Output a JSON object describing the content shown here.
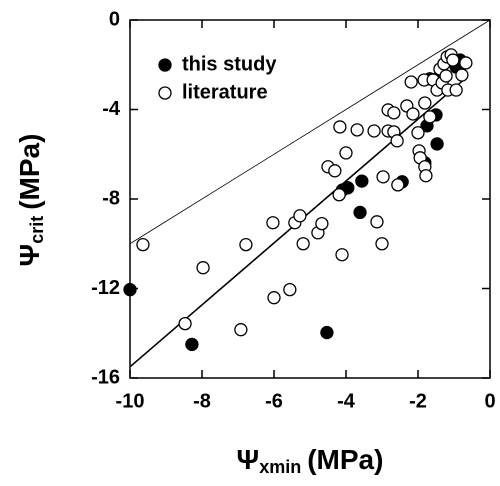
{
  "chart_data": {
    "type": "scatter",
    "x_label": {
      "symbol": "Ψ",
      "subscript": "xmin",
      "unit": "(MPa)"
    },
    "y_label": {
      "symbol": "Ψ",
      "subscript": "crit",
      "unit": "(MPa)"
    },
    "xlim": [
      -10,
      0
    ],
    "ylim": [
      -16,
      0
    ],
    "xticks": [
      -10,
      -8,
      -6,
      -4,
      -2,
      0
    ],
    "yticks": [
      -16,
      -12,
      -8,
      -4,
      0
    ],
    "legend_position": "upper left",
    "series": [
      {
        "name": "this study",
        "color": "#000000",
        "filled": true,
        "x": [
          -10,
          -8.28,
          -4.53,
          -4.1,
          -3.95,
          -3.56,
          -3.61,
          -2.44,
          -1.81,
          -1.75,
          -1.67,
          -1.5,
          -1.47,
          -1.67,
          -1.44,
          -0.97,
          -0.83,
          -0.94
        ],
        "values": [
          -12.05,
          -14.5,
          -13.97,
          -7.6,
          -7.5,
          -7.2,
          -8.6,
          -7.23,
          -6.38,
          -4.73,
          -2.63,
          -4.24,
          -5.54,
          -2.63,
          -2.59,
          -1.92,
          -1.79,
          -2.1
        ]
      },
      {
        "name": "literature",
        "color": "#000000",
        "filled": false,
        "x": [
          -9.64,
          -7.97,
          -6.78,
          -8.47,
          -6.92,
          -6.0,
          -5.56,
          -6.03,
          -5.42,
          -5.28,
          -5.19,
          -4.78,
          -4.67,
          -4.5,
          -4.31,
          -4.19,
          -4.11,
          -4.17,
          -4.0,
          -3.69,
          -3.22,
          -3.14,
          -3.0,
          -2.97,
          -2.83,
          -2.83,
          -2.67,
          -2.67,
          -2.58,
          -2.56,
          -2.31,
          -2.19,
          -2.14,
          -2.0,
          -1.97,
          -1.94,
          -1.81,
          -1.78,
          -1.83,
          -1.81,
          -1.67,
          -1.58,
          -1.47,
          -1.39,
          -1.33,
          -1.22,
          -1.17,
          -1.28,
          -1.19,
          -1.08,
          -1.03,
          -0.94,
          -0.78,
          -0.67
        ],
        "values": [
          -10.04,
          -11.07,
          -10.04,
          -13.57,
          -13.84,
          -12.41,
          -12.05,
          -9.06,
          -9.06,
          -8.75,
          -10.0,
          -9.51,
          -9.1,
          -6.56,
          -6.74,
          -7.81,
          -10.49,
          -4.78,
          -5.94,
          -4.91,
          -4.96,
          -9.02,
          -10.0,
          -7.01,
          -4.96,
          -4.02,
          -4.15,
          -5.0,
          -5.4,
          -7.37,
          -3.84,
          -2.77,
          -4.2,
          -5.04,
          -5.85,
          -6.16,
          -6.56,
          -6.96,
          -2.68,
          -3.71,
          -4.33,
          -2.68,
          -3.13,
          -2.19,
          -2.81,
          -2.5,
          -3.13,
          -1.96,
          -1.65,
          -1.56,
          -1.79,
          -3.13,
          -2.46,
          -1.92
        ]
      }
    ],
    "lines": [
      {
        "x": [
          -10,
          0
        ],
        "values": [
          -10,
          0
        ],
        "width": 0.8
      },
      {
        "x": [
          -10,
          -0.67
        ],
        "values": [
          -15.5,
          -2.59
        ],
        "width": 1.6
      }
    ]
  }
}
